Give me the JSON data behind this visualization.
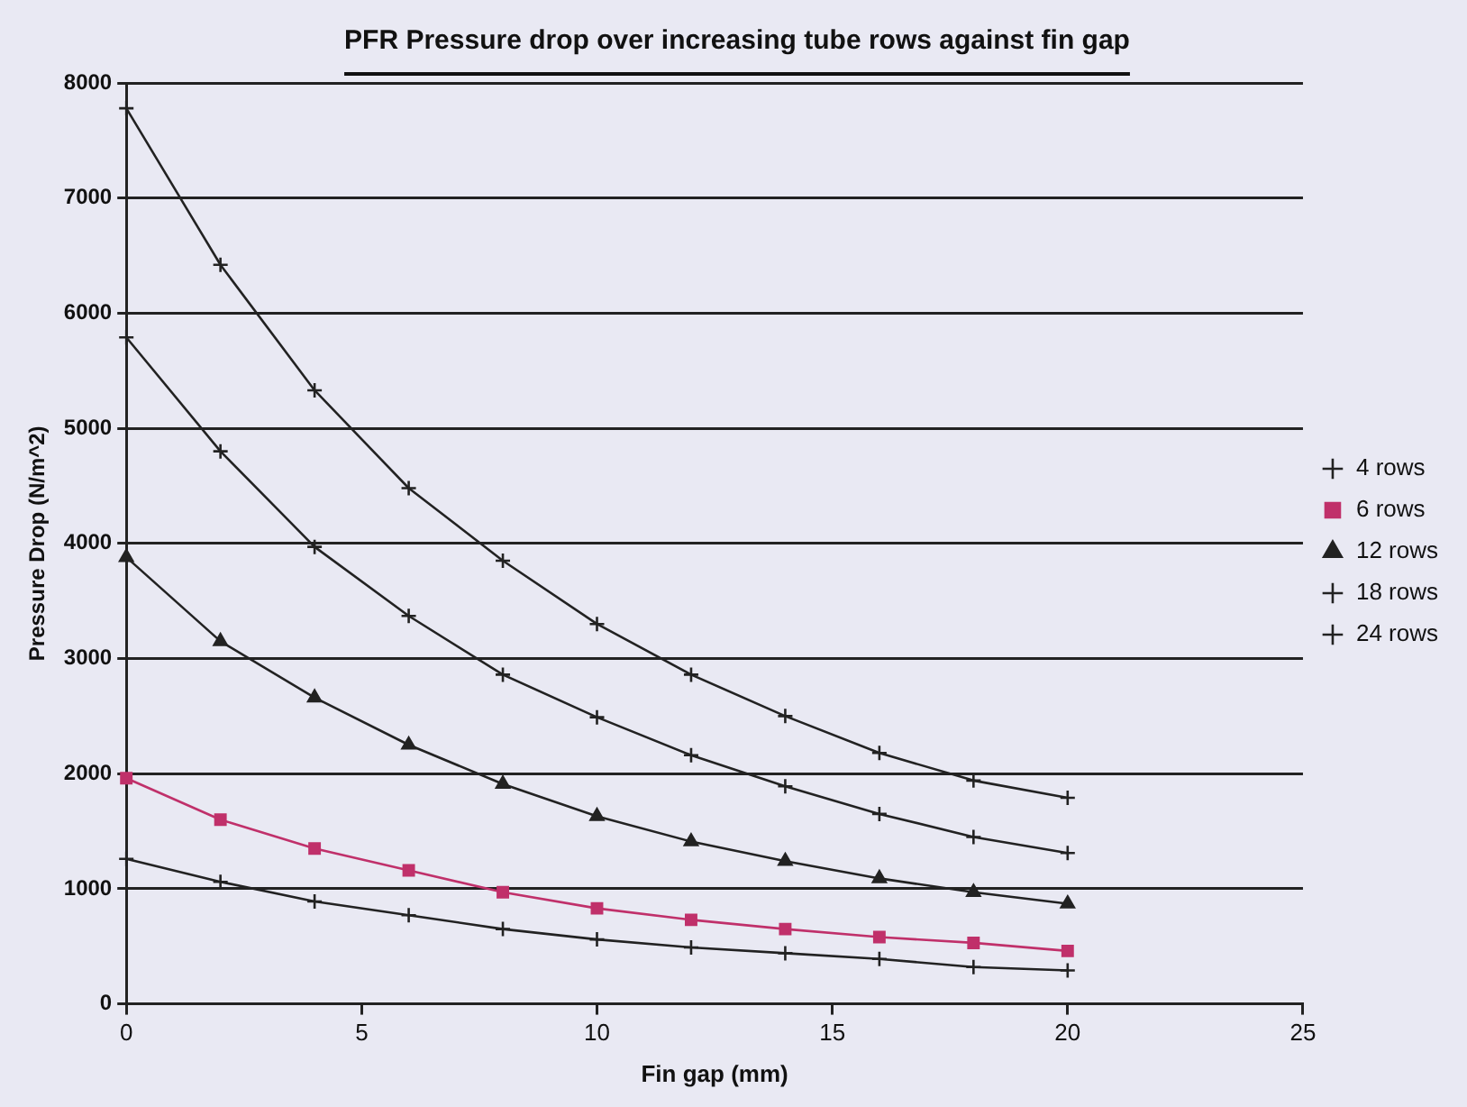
{
  "chart_data": {
    "type": "line",
    "title": "PFR Pressure drop over increasing tube rows against fin gap",
    "xlabel": "Fin gap (mm)",
    "ylabel": "Pressure Drop (N/m^2)",
    "x": [
      0,
      2,
      4,
      6,
      8,
      10,
      12,
      14,
      16,
      18,
      20
    ],
    "xlim": [
      0,
      25
    ],
    "xticks": [
      0,
      5,
      10,
      15,
      20,
      25
    ],
    "ylim": [
      0,
      8000
    ],
    "yticks": [
      0,
      1000,
      2000,
      3000,
      4000,
      5000,
      6000,
      7000,
      8000
    ],
    "grid": "y",
    "legend": "right",
    "series": [
      {
        "name": "4 rows",
        "color": "#222222",
        "marker": "cross",
        "values": [
          1260,
          1060,
          890,
          770,
          650,
          560,
          490,
          440,
          390,
          320,
          290
        ]
      },
      {
        "name": "6 rows",
        "color": "#c0306a",
        "marker": "square",
        "values": [
          1960,
          1600,
          1350,
          1160,
          970,
          830,
          730,
          650,
          580,
          530,
          460
        ]
      },
      {
        "name": "12 rows",
        "color": "#222222",
        "marker": "triangle",
        "values": [
          3880,
          3150,
          2660,
          2250,
          1910,
          1630,
          1410,
          1240,
          1090,
          970,
          870
        ]
      },
      {
        "name": "18 rows",
        "color": "#222222",
        "marker": "cross",
        "values": [
          5790,
          4800,
          3970,
          3370,
          2860,
          2490,
          2160,
          1890,
          1650,
          1450,
          1310
        ]
      },
      {
        "name": "24 rows",
        "color": "#222222",
        "marker": "cross",
        "values": [
          7780,
          6420,
          5330,
          4480,
          3850,
          3300,
          2860,
          2500,
          2180,
          1940,
          1790
        ]
      }
    ]
  }
}
